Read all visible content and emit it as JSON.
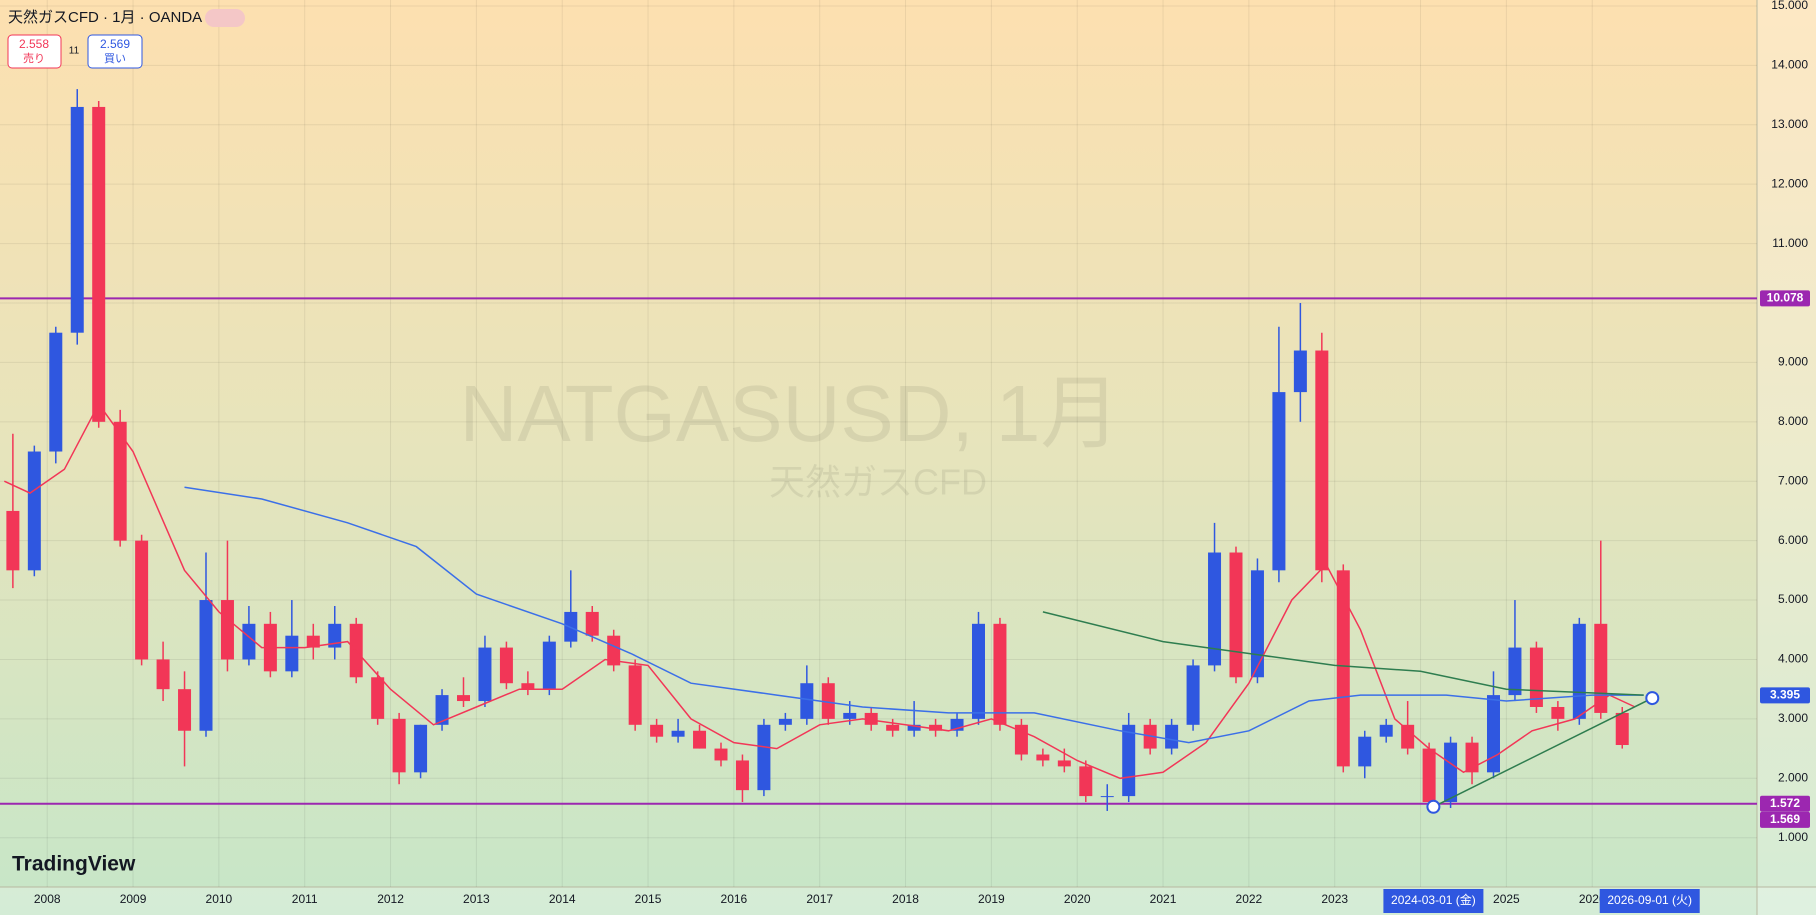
{
  "chart_data": {
    "type": "candlestick",
    "title": "天然ガスCFD · 1月 · OANDA",
    "sell": {
      "value": 2.558,
      "label": "売り"
    },
    "spread": "11",
    "buy": {
      "value": 2.569,
      "label": "買い"
    },
    "watermark": "NATGASUSD, 1月",
    "watermark_sub": "天然ガスCFD",
    "logo": "TradingView",
    "up_color": "#2f57e0",
    "down_color": "#f23657",
    "xlim": [
      2007.45,
      2027.92
    ],
    "ylim": [
      0.17,
      15.1
    ],
    "grid": true,
    "xticks": [
      2008,
      2009,
      2010,
      2011,
      2012,
      2013,
      2014,
      2015,
      2016,
      2017,
      2018,
      2019,
      2020,
      2021,
      2022,
      2023,
      2024,
      2025,
      2026
    ],
    "yticks": [
      {
        "value": 1,
        "label": "1.000"
      },
      {
        "value": 2,
        "label": "2.000"
      },
      {
        "value": 3,
        "label": "3.000"
      },
      {
        "value": 4,
        "label": "4.000"
      },
      {
        "value": 5,
        "label": "5.000"
      },
      {
        "value": 6,
        "label": "6.000"
      },
      {
        "value": 7,
        "label": "7.000"
      },
      {
        "value": 8,
        "label": "8.000"
      },
      {
        "value": 9,
        "label": "9.000"
      },
      {
        "value": 10,
        "label": "10.000"
      },
      {
        "value": 11,
        "label": "11.000"
      },
      {
        "value": 12,
        "label": "12.000"
      },
      {
        "value": 13,
        "label": "13.000"
      },
      {
        "value": 14,
        "label": "14.000"
      },
      {
        "value": 15,
        "label": "15.000"
      }
    ],
    "x": [
      2007.6,
      2007.85,
      2008.1,
      2008.35,
      2008.6,
      2008.85,
      2009.1,
      2009.35,
      2009.6,
      2009.85,
      2010.1,
      2010.35,
      2010.6,
      2010.85,
      2011.1,
      2011.35,
      2011.6,
      2011.85,
      2012.1,
      2012.35,
      2012.6,
      2012.85,
      2013.1,
      2013.35,
      2013.6,
      2013.85,
      2014.1,
      2014.35,
      2014.6,
      2014.85,
      2015.1,
      2015.35,
      2015.6,
      2015.85,
      2016.1,
      2016.35,
      2016.6,
      2016.85,
      2017.1,
      2017.35,
      2017.6,
      2017.85,
      2018.1,
      2018.35,
      2018.6,
      2018.85,
      2019.1,
      2019.35,
      2019.6,
      2019.85,
      2020.1,
      2020.35,
      2020.6,
      2020.85,
      2021.1,
      2021.35,
      2021.6,
      2021.85,
      2022.1,
      2022.35,
      2022.6,
      2022.85,
      2023.1,
      2023.35,
      2023.6,
      2023.85,
      2024.1,
      2024.35,
      2024.6,
      2024.85,
      2025.1,
      2025.35,
      2025.6,
      2025.85,
      2026.1,
      2026.35
    ],
    "open": [
      6.5,
      5.5,
      7.5,
      9.5,
      13.3,
      8.0,
      6.0,
      4.0,
      3.5,
      2.8,
      5.0,
      4.0,
      4.6,
      3.8,
      4.4,
      4.2,
      4.6,
      3.7,
      3.0,
      2.1,
      2.9,
      3.4,
      3.3,
      4.2,
      3.6,
      3.5,
      4.3,
      4.8,
      4.4,
      3.9,
      2.9,
      2.7,
      2.8,
      2.5,
      2.3,
      1.8,
      2.9,
      3.0,
      3.6,
      3.0,
      3.1,
      2.9,
      2.8,
      2.9,
      2.8,
      3.0,
      4.6,
      2.9,
      2.4,
      2.3,
      2.2,
      1.7,
      1.7,
      2.9,
      2.5,
      2.9,
      3.9,
      5.8,
      3.7,
      5.5,
      8.5,
      9.2,
      5.5,
      2.2,
      2.7,
      2.9,
      2.5,
      1.6,
      2.6,
      2.1,
      3.4,
      4.2,
      3.2,
      3.0,
      4.6,
      3.1
    ],
    "high": [
      7.8,
      7.6,
      9.6,
      13.6,
      13.4,
      8.2,
      6.1,
      4.3,
      3.8,
      5.8,
      6.0,
      4.9,
      4.8,
      5.0,
      4.6,
      4.9,
      4.7,
      3.8,
      3.1,
      2.9,
      3.5,
      3.7,
      4.4,
      4.3,
      3.8,
      4.4,
      5.5,
      4.9,
      4.5,
      4.0,
      3.0,
      3.0,
      2.9,
      2.6,
      2.4,
      3.0,
      3.1,
      3.9,
      3.7,
      3.3,
      3.2,
      3.0,
      3.3,
      3.0,
      3.1,
      4.8,
      4.7,
      3.0,
      2.5,
      2.5,
      2.3,
      1.9,
      3.1,
      3.0,
      3.0,
      4.0,
      6.3,
      5.9,
      5.7,
      9.6,
      10.0,
      9.5,
      5.6,
      2.8,
      3.0,
      3.3,
      2.6,
      2.7,
      2.7,
      3.8,
      5.0,
      4.3,
      3.3,
      4.7,
      6.0,
      3.2
    ],
    "low": [
      5.2,
      5.4,
      7.3,
      9.3,
      7.9,
      5.9,
      3.9,
      3.3,
      2.2,
      2.7,
      3.8,
      3.9,
      3.7,
      3.7,
      4.0,
      4.0,
      3.6,
      2.9,
      1.9,
      2.0,
      2.8,
      3.2,
      3.2,
      3.5,
      3.4,
      3.4,
      4.2,
      4.3,
      3.8,
      2.8,
      2.6,
      2.6,
      2.5,
      2.2,
      1.6,
      1.7,
      2.8,
      2.9,
      2.9,
      2.9,
      2.8,
      2.7,
      2.7,
      2.7,
      2.7,
      2.9,
      2.8,
      2.3,
      2.2,
      2.1,
      1.6,
      1.45,
      1.6,
      2.4,
      2.4,
      2.8,
      3.8,
      3.6,
      3.6,
      5.3,
      8.0,
      5.3,
      2.1,
      2.0,
      2.6,
      2.4,
      1.5,
      1.5,
      1.9,
      2.0,
      3.3,
      3.1,
      2.8,
      2.9,
      3.0,
      2.5
    ],
    "close": [
      5.5,
      7.5,
      9.5,
      13.3,
      8.0,
      6.0,
      4.0,
      3.5,
      2.8,
      5.0,
      4.0,
      4.6,
      3.8,
      4.4,
      4.2,
      4.6,
      3.7,
      3.0,
      2.1,
      2.9,
      3.4,
      3.3,
      4.2,
      3.6,
      3.5,
      4.3,
      4.8,
      4.4,
      3.9,
      2.9,
      2.7,
      2.8,
      2.5,
      2.3,
      1.8,
      2.9,
      3.0,
      3.6,
      3.0,
      3.1,
      2.9,
      2.8,
      2.9,
      2.8,
      3.0,
      4.6,
      2.9,
      2.4,
      2.3,
      2.2,
      1.7,
      1.7,
      2.9,
      2.5,
      2.9,
      3.9,
      5.8,
      3.7,
      5.5,
      8.5,
      9.2,
      5.5,
      2.2,
      2.7,
      2.9,
      2.5,
      1.6,
      2.6,
      2.1,
      3.4,
      4.2,
      3.2,
      3.0,
      4.6,
      3.1,
      2.56
    ],
    "lines": [
      {
        "color": "#f23657",
        "x": [
          2007.5,
          2007.8,
          2008.2,
          2008.6,
          2009.0,
          2009.6,
          2010.0,
          2010.5,
          2011.0,
          2011.5,
          2012.0,
          2012.5,
          2013.0,
          2013.5,
          2014.0,
          2014.5,
          2015.0,
          2015.5,
          2016.0,
          2016.5,
          2017.0,
          2017.5,
          2018.0,
          2018.5,
          2019.0,
          2019.5,
          2020.0,
          2020.5,
          2021.0,
          2021.5,
          2022.0,
          2022.5,
          2022.9,
          2023.3,
          2023.7,
          2024.1,
          2024.5,
          2024.9,
          2025.3,
          2025.8,
          2026.2,
          2026.5
        ],
        "values": [
          7.0,
          6.8,
          7.2,
          8.3,
          7.5,
          5.5,
          4.8,
          4.2,
          4.2,
          4.3,
          3.5,
          2.9,
          3.2,
          3.5,
          3.5,
          4.0,
          3.9,
          3.0,
          2.6,
          2.5,
          2.9,
          3.0,
          2.9,
          2.8,
          3.0,
          2.7,
          2.3,
          2.0,
          2.1,
          2.6,
          3.6,
          5.0,
          5.6,
          4.5,
          3.0,
          2.5,
          2.1,
          2.4,
          2.8,
          3.0,
          3.4,
          3.2
        ]
      },
      {
        "color": "#3b6fe8",
        "x": [
          2009.6,
          2010.5,
          2011.5,
          2012.3,
          2013.0,
          2014.0,
          2014.8,
          2015.5,
          2016.5,
          2017.5,
          2018.5,
          2019.5,
          2020.5,
          2021.3,
          2022.0,
          2022.7,
          2023.3,
          2024.3,
          2025.0,
          2026.0,
          2026.6
        ],
        "values": [
          6.9,
          6.7,
          6.3,
          5.9,
          5.1,
          4.6,
          4.1,
          3.6,
          3.4,
          3.2,
          3.1,
          3.1,
          2.8,
          2.6,
          2.8,
          3.3,
          3.4,
          3.4,
          3.3,
          3.4,
          3.4
        ]
      },
      {
        "color": "#2e7d4f",
        "x": [
          2019.6,
          2021.0,
          2022.0,
          2023.0,
          2024.0,
          2025.0,
          2026.6
        ],
        "values": [
          4.8,
          4.3,
          4.1,
          3.9,
          3.8,
          3.5,
          3.4
        ]
      },
      {
        "color": "#2e7d4f",
        "x": [
          2024.15,
          2026.7
        ],
        "values": [
          1.52,
          3.35
        ],
        "handles": true
      }
    ],
    "hlines": [
      {
        "value": 10.078,
        "color": "#9c27b0"
      },
      {
        "value": 1.572,
        "color": "#9c27b0"
      }
    ],
    "price_labels": [
      {
        "value": 10.078,
        "color": "#9c27b0"
      },
      {
        "value": 3.395,
        "color": "#2f57e0"
      },
      {
        "value": 1.572,
        "color": "#9c27b0"
      },
      {
        "value": 1.569,
        "color": "#9c27b0"
      }
    ],
    "cursor_labels": [
      {
        "value": 2024.15,
        "label": "2024-03-01 (金)"
      },
      {
        "value": 2026.67,
        "label": "2026-09-01 (火)"
      }
    ]
  }
}
